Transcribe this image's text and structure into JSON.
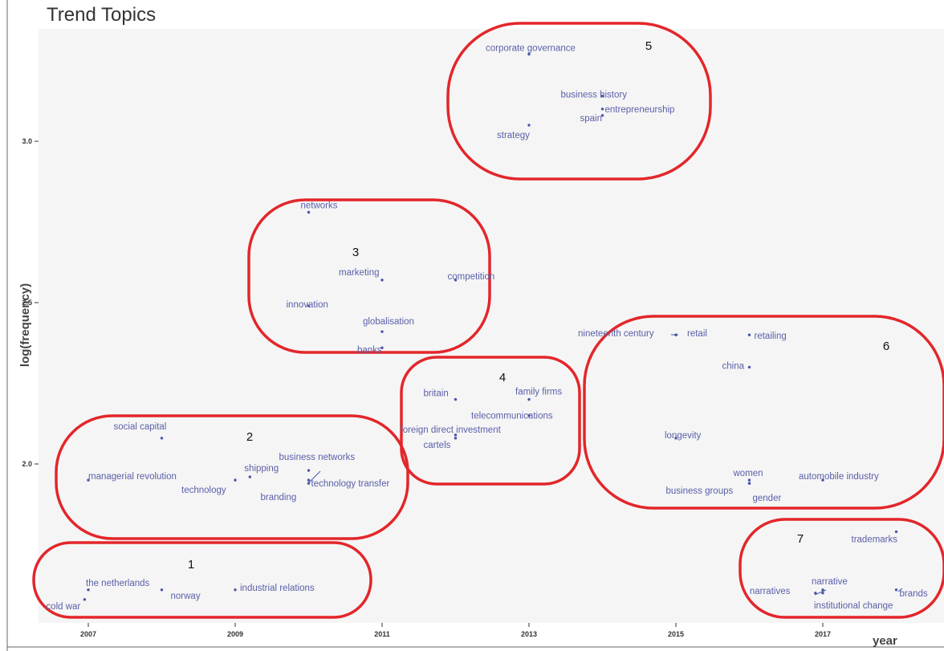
{
  "chart_data": {
    "type": "scatter",
    "title": "Trend Topics",
    "xlabel": "year",
    "ylabel": "log(frequency)",
    "xlim": [
      2006.45,
      2018.55
    ],
    "ylim": [
      1.55,
      3.35
    ],
    "x_ticks": [
      2007,
      2009,
      2011,
      2013,
      2015,
      2017
    ],
    "y_ticks": [
      "2.0",
      "2.5",
      "3.0"
    ],
    "grid": false,
    "points": [
      {
        "label": "cold war",
        "x": 2006.95,
        "y": 1.58
      },
      {
        "label": "the netherlands",
        "x": 2007.0,
        "y": 1.61
      },
      {
        "label": "norway",
        "x": 2008.0,
        "y": 1.61
      },
      {
        "label": "industrial relations",
        "x": 2009.0,
        "y": 1.61
      },
      {
        "label": "social capital",
        "x": 2008.0,
        "y": 2.08
      },
      {
        "label": "managerial revolution",
        "x": 2007.0,
        "y": 1.95
      },
      {
        "label": "shipping",
        "x": 2009.2,
        "y": 1.96
      },
      {
        "label": "technology",
        "x": 2009.0,
        "y": 1.95
      },
      {
        "label": "business networks",
        "x": 2010.0,
        "y": 1.98
      },
      {
        "label": "branding",
        "x": 2010.0,
        "y": 1.94
      },
      {
        "label": "technology transfer",
        "x": 2010.0,
        "y": 1.95
      },
      {
        "label": "networks",
        "x": 2010.0,
        "y": 2.78
      },
      {
        "label": "marketing",
        "x": 2011.0,
        "y": 2.57
      },
      {
        "label": "competition",
        "x": 2012.0,
        "y": 2.57
      },
      {
        "label": "innovation",
        "x": 2010.0,
        "y": 2.49
      },
      {
        "label": "globalisation",
        "x": 2011.0,
        "y": 2.41
      },
      {
        "label": "banks",
        "x": 2011.0,
        "y": 2.36
      },
      {
        "label": "britain",
        "x": 2012.0,
        "y": 2.2
      },
      {
        "label": "family firms",
        "x": 2013.0,
        "y": 2.2
      },
      {
        "label": "telecommunications",
        "x": 2013.0,
        "y": 2.15
      },
      {
        "label": "foreign direct investment",
        "x": 2012.0,
        "y": 2.09
      },
      {
        "label": "cartels",
        "x": 2012.0,
        "y": 2.08
      },
      {
        "label": "corporate governance",
        "x": 2013.0,
        "y": 3.27
      },
      {
        "label": "business history",
        "x": 2014.0,
        "y": 3.14
      },
      {
        "label": "entrepreneurship",
        "x": 2014.0,
        "y": 3.1
      },
      {
        "label": "spain",
        "x": 2014.0,
        "y": 3.08
      },
      {
        "label": "strategy",
        "x": 2013.0,
        "y": 3.05
      },
      {
        "label": "nineteenth century",
        "x": 2015.0,
        "y": 2.4
      },
      {
        "label": "retail",
        "x": 2015.0,
        "y": 2.4
      },
      {
        "label": "retailing",
        "x": 2016.0,
        "y": 2.4
      },
      {
        "label": "china",
        "x": 2016.0,
        "y": 2.3
      },
      {
        "label": "longevity",
        "x": 2015.0,
        "y": 2.08
      },
      {
        "label": "women",
        "x": 2016.0,
        "y": 1.95
      },
      {
        "label": "automobile industry",
        "x": 2017.0,
        "y": 1.95
      },
      {
        "label": "business groups",
        "x": 2016.0,
        "y": 1.94
      },
      {
        "label": "gender",
        "x": 2016.0,
        "y": 1.94
      },
      {
        "label": "trademarks",
        "x": 2018.0,
        "y": 1.79
      },
      {
        "label": "narrative",
        "x": 2017.0,
        "y": 1.61
      },
      {
        "label": "brands",
        "x": 2018.0,
        "y": 1.61
      },
      {
        "label": "narratives",
        "x": 2016.9,
        "y": 1.6
      },
      {
        "label": "institutional change",
        "x": 2017.0,
        "y": 1.6
      }
    ],
    "annotations": [
      "1",
      "2",
      "3",
      "4",
      "5",
      "6",
      "7"
    ]
  }
}
